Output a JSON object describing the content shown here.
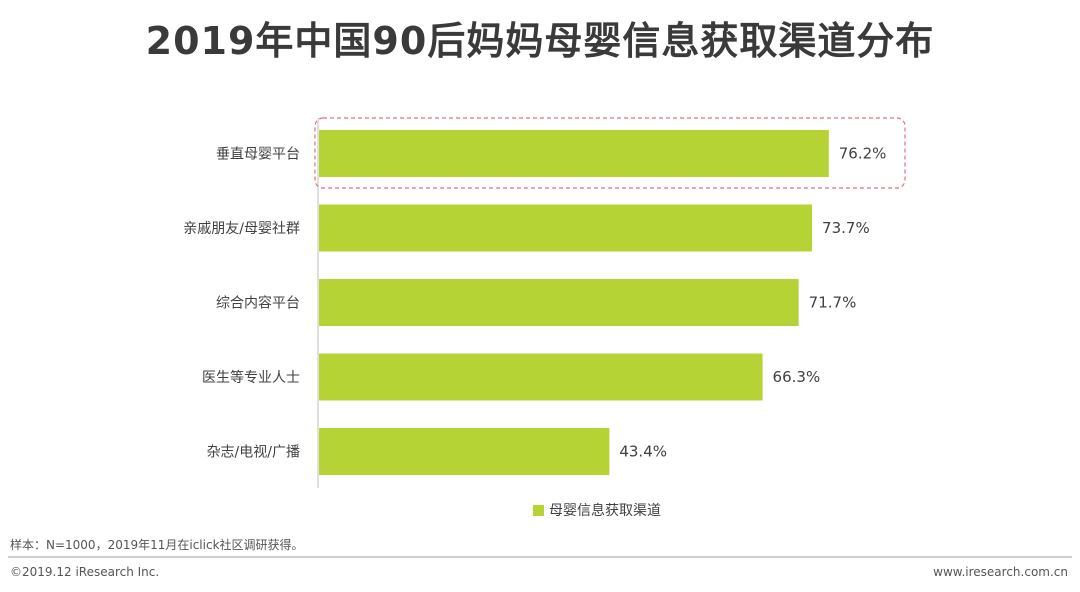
{
  "title": "2019年中国90后妈妈母婴信息获取渠道分布",
  "chart_data": {
    "type": "bar",
    "orientation": "horizontal",
    "categories": [
      "垂直母婴平台",
      "亲戚朋友/母婴社群",
      "综合内容平台",
      "医生等专业人士",
      "杂志/电视/广播"
    ],
    "series": [
      {
        "name": "母婴信息获取渠道",
        "values": [
          76.2,
          73.7,
          71.7,
          66.3,
          43.4
        ],
        "color": "#b5d334"
      }
    ],
    "data_labels": [
      "76.2%",
      "73.7%",
      "71.7%",
      "66.3%",
      "43.4%"
    ],
    "xlim": [
      0,
      100
    ],
    "grid": false,
    "legend": "bottom",
    "highlight_category": "垂直母婴平台",
    "highlight_color": "#e07080"
  },
  "footer": {
    "note": "样本：N=1000，2019年11月在iclick社区调研获得。",
    "copyright": "©2019.12 iResearch Inc.",
    "site": "www.iresearch.com.cn"
  }
}
